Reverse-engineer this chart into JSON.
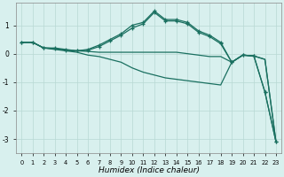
{
  "xlabel": "Humidex (Indice chaleur)",
  "background_color": "#d8f0ee",
  "grid_color": "#b8d8d4",
  "line_color": "#1a7060",
  "xlim": [
    -0.5,
    23.5
  ],
  "ylim": [
    -3.5,
    1.8
  ],
  "yticks": [
    -3,
    -2,
    -1,
    0,
    1
  ],
  "xticks": [
    0,
    1,
    2,
    3,
    4,
    5,
    6,
    7,
    8,
    9,
    10,
    11,
    12,
    13,
    14,
    15,
    16,
    17,
    18,
    19,
    20,
    21,
    22,
    23
  ],
  "lines": [
    {
      "x": [
        0,
        1,
        2,
        3,
        4,
        5,
        6,
        7,
        8,
        9,
        10,
        11,
        12,
        13,
        14,
        15,
        16,
        17,
        18,
        19,
        20,
        21,
        22,
        23
      ],
      "y": [
        0.4,
        0.4,
        0.2,
        0.2,
        0.15,
        0.1,
        0.15,
        0.3,
        0.5,
        0.7,
        1.0,
        1.1,
        1.5,
        1.2,
        1.2,
        1.1,
        0.8,
        0.65,
        0.4,
        -0.3,
        -0.05,
        -0.08,
        -1.35,
        -3.1
      ],
      "marker": true
    },
    {
      "x": [
        0,
        1,
        2,
        3,
        4,
        5,
        6,
        7,
        8,
        9,
        10,
        11,
        12,
        13,
        14,
        15,
        16,
        17,
        18,
        19,
        20,
        21,
        22,
        23
      ],
      "y": [
        0.4,
        0.4,
        0.2,
        0.18,
        0.12,
        0.1,
        0.08,
        0.05,
        0.05,
        0.05,
        0.05,
        0.05,
        0.05,
        0.05,
        0.05,
        0.0,
        -0.05,
        -0.1,
        -0.1,
        -0.3,
        -0.05,
        -0.08,
        -0.2,
        -3.1
      ],
      "marker": false
    },
    {
      "x": [
        0,
        1,
        2,
        3,
        4,
        5,
        6,
        7,
        8,
        9,
        10,
        11,
        12,
        13,
        14,
        15,
        16,
        17,
        18,
        19,
        20,
        21,
        22,
        23
      ],
      "y": [
        0.4,
        0.4,
        0.2,
        0.15,
        0.1,
        0.05,
        -0.05,
        -0.1,
        -0.2,
        -0.3,
        -0.5,
        -0.65,
        -0.75,
        -0.85,
        -0.9,
        -0.95,
        -1.0,
        -1.05,
        -1.1,
        -0.3,
        -0.05,
        -0.08,
        -0.2,
        -3.1
      ],
      "marker": false
    },
    {
      "x": [
        0,
        1,
        2,
        3,
        4,
        5,
        6,
        7,
        8,
        9,
        10,
        11,
        12,
        13,
        14,
        15,
        16,
        17,
        18,
        19,
        20,
        21,
        22,
        23
      ],
      "y": [
        0.4,
        0.4,
        0.2,
        0.18,
        0.12,
        0.1,
        0.12,
        0.25,
        0.45,
        0.65,
        0.9,
        1.05,
        1.45,
        1.15,
        1.15,
        1.05,
        0.75,
        0.6,
        0.35,
        -0.3,
        -0.05,
        -0.08,
        -1.35,
        -3.1
      ],
      "marker": true
    }
  ]
}
